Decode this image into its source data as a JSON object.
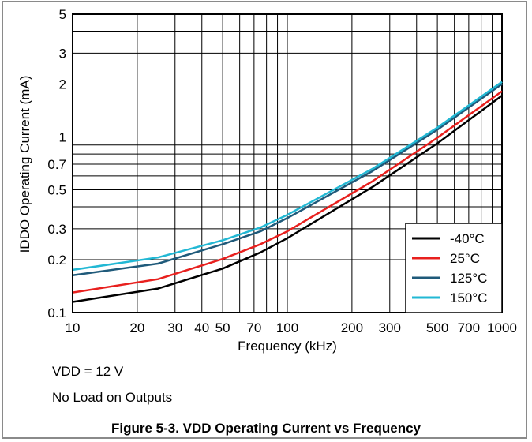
{
  "chart_data": {
    "type": "line",
    "xlabel": "Frequency (kHz)",
    "ylabel": "IDDO Operating Current (mA)",
    "xscale": "log",
    "yscale": "log",
    "xlim": [
      10,
      1000
    ],
    "ylim": [
      0.1,
      5
    ],
    "x_ticks": [
      10,
      20,
      30,
      40,
      50,
      70,
      100,
      200,
      300,
      500,
      700,
      1000
    ],
    "x_tick_labels": [
      "10",
      "20",
      "30",
      "40",
      "50",
      "70",
      "100",
      "200",
      "300",
      "500",
      "700",
      "1000"
    ],
    "y_ticks": [
      0.1,
      0.2,
      0.3,
      0.5,
      0.7,
      1,
      2,
      3,
      5
    ],
    "y_tick_labels": [
      "0.1",
      "0.2",
      "0.3",
      "0.5",
      "0.7",
      "1",
      "2",
      "3",
      "5"
    ],
    "x_minor_grid": [
      60,
      80,
      90,
      400,
      600,
      800,
      900
    ],
    "y_minor_grid": [
      0.4,
      0.6,
      0.8,
      0.9,
      4
    ],
    "grid": true,
    "legend_position": "bottom-right",
    "series": [
      {
        "name": "-40°C",
        "color": "#000000",
        "x": [
          10,
          25,
          50,
          75,
          100,
          250,
          500,
          1000
        ],
        "y": [
          0.115,
          0.137,
          0.178,
          0.22,
          0.265,
          0.52,
          0.92,
          1.72
        ]
      },
      {
        "name": "25°C",
        "color": "#e8201e",
        "x": [
          10,
          25,
          50,
          75,
          100,
          250,
          500,
          1000
        ],
        "y": [
          0.13,
          0.155,
          0.202,
          0.245,
          0.29,
          0.56,
          0.99,
          1.82
        ]
      },
      {
        "name": "125°C",
        "color": "#1f5a7a",
        "x": [
          10,
          25,
          50,
          75,
          100,
          250,
          500,
          1000
        ],
        "y": [
          0.163,
          0.19,
          0.245,
          0.29,
          0.345,
          0.64,
          1.1,
          2.0
        ]
      },
      {
        "name": "150°C",
        "color": "#22b8d4",
        "x": [
          10,
          25,
          50,
          75,
          100,
          250,
          500,
          1000
        ],
        "y": [
          0.175,
          0.206,
          0.258,
          0.305,
          0.36,
          0.66,
          1.13,
          2.06
        ]
      }
    ]
  },
  "notes": {
    "vdd": "VDD = 12 V",
    "load": "No Load on Outputs"
  },
  "caption": "Figure 5-3. VDD Operating Current vs Frequency"
}
